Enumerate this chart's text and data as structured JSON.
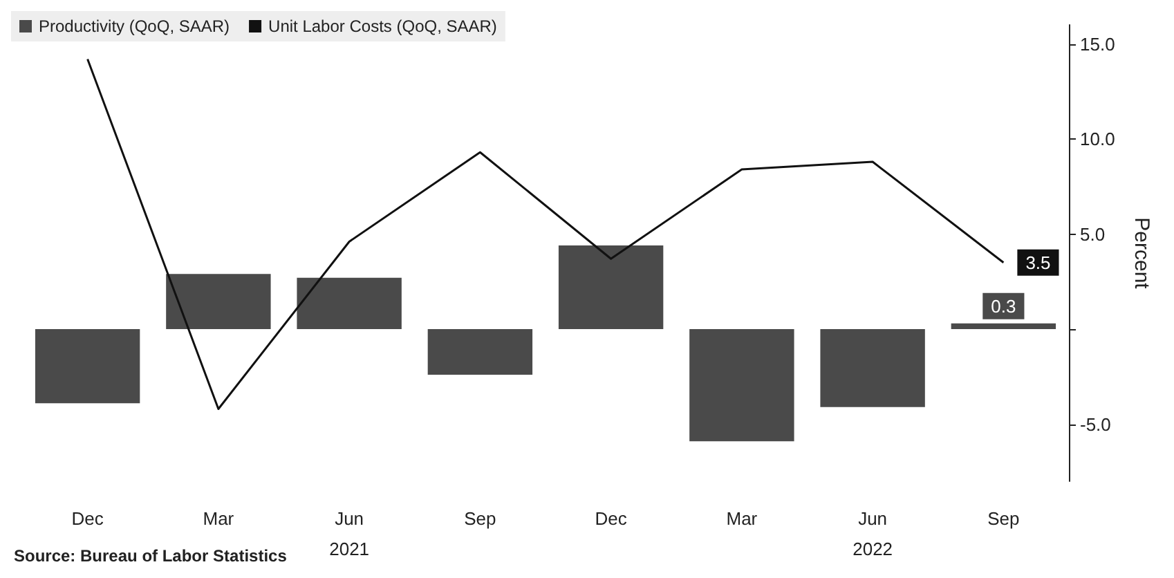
{
  "chart_data": {
    "type": "bar",
    "categories": [
      "Dec",
      "Mar",
      "Jun\n2021",
      "Sep",
      "Dec",
      "Mar",
      "Jun\n2022",
      "Sep"
    ],
    "series": [
      {
        "name": "Productivity (QoQ, SAAR)",
        "type": "bar",
        "color": "#4a4a4a",
        "values": [
          -3.9,
          2.9,
          2.7,
          -2.4,
          4.4,
          -5.9,
          -4.1,
          0.3
        ],
        "value_labels": [
          null,
          null,
          null,
          null,
          null,
          null,
          null,
          "0.3"
        ]
      },
      {
        "name": "Unit Labor Costs (QoQ, SAAR)",
        "type": "line",
        "color": "#111111",
        "values": [
          14.2,
          -4.2,
          4.6,
          9.3,
          3.7,
          8.4,
          8.8,
          3.5
        ],
        "value_labels": [
          null,
          null,
          null,
          null,
          null,
          null,
          null,
          "3.5"
        ]
      }
    ],
    "ylabel": "Percent",
    "ylim": [
      -8,
      16
    ],
    "yticks": [
      {
        "value": -5,
        "label": "-5.0"
      },
      {
        "value": 0,
        "label": null
      },
      {
        "value": 5,
        "label": "5.0"
      },
      {
        "value": 10,
        "label": "10.0"
      },
      {
        "value": 15,
        "label": "15.0"
      }
    ],
    "legend": "top left",
    "marker": "none",
    "annotations": [
      "Source: Bureau of Labor Statistics"
    ]
  }
}
